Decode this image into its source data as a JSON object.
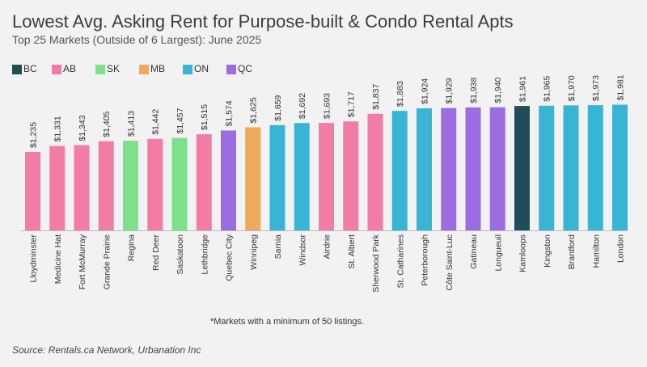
{
  "title": "Lowest Avg. Asking Rent for Purpose-built & Condo Rental Apts",
  "subtitle": "Top 25 Markets (Outside of 6 Largest): June 2025",
  "footnote": "*Markets with a minimum of 50 listings.",
  "source": "Source: Rentals.ca Network, Urbanation Inc",
  "legend": [
    {
      "label": "BC",
      "color": "#1f4e5a"
    },
    {
      "label": "AB",
      "color": "#f27ca5"
    },
    {
      "label": "SK",
      "color": "#7ee08a"
    },
    {
      "label": "MB",
      "color": "#f0a85a"
    },
    {
      "label": "ON",
      "color": "#38b4d4"
    },
    {
      "label": "QC",
      "color": "#9b6de0"
    }
  ],
  "chart_data": {
    "type": "bar",
    "title": "Lowest Avg. Asking Rent for Purpose-built & Condo Rental Apts",
    "subtitle": "Top 25 Markets (Outside of 6 Largest): June 2025",
    "categories": [
      "Lloydminster",
      "Medicine Hat",
      "Fort McMurray",
      "Grande Prairie",
      "Regina",
      "Red Deer",
      "Saskatoon",
      "Lethbridge",
      "Quebec City",
      "Winnipeg",
      "Sarnia",
      "Windsor",
      "Airdrie",
      "St. Albert",
      "Sherwood Park",
      "St. Catharines",
      "Peterborough",
      "Côte Saint-Luc",
      "Gatineau",
      "Longueuil",
      "Kamloops",
      "Kingston",
      "Brantford",
      "Hamilton",
      "London"
    ],
    "values": [
      1235,
      1331,
      1343,
      1405,
      1413,
      1442,
      1457,
      1515,
      1574,
      1625,
      1659,
      1692,
      1693,
      1717,
      1837,
      1883,
      1924,
      1929,
      1938,
      1940,
      1961,
      1965,
      1970,
      1973,
      1981
    ],
    "value_labels": [
      "$1,235",
      "$1,331",
      "$1,343",
      "$1,405",
      "$1,413",
      "$1,442",
      "$1,457",
      "$1,515",
      "$1,574",
      "$1,625",
      "$1,659",
      "$1,692",
      "$1,693",
      "$1,717",
      "$1,837",
      "$1,883",
      "$1,924",
      "$1,929",
      "$1,938",
      "$1,940",
      "$1,961",
      "$1,965",
      "$1,970",
      "$1,973",
      "$1,981"
    ],
    "provinces": [
      "AB",
      "AB",
      "AB",
      "AB",
      "SK",
      "AB",
      "SK",
      "AB",
      "QC",
      "MB",
      "ON",
      "ON",
      "AB",
      "AB",
      "AB",
      "ON",
      "ON",
      "QC",
      "QC",
      "QC",
      "BC",
      "ON",
      "ON",
      "ON",
      "ON"
    ],
    "ylim": [
      0,
      2000
    ],
    "grid": false,
    "legend_position": "top-left"
  }
}
